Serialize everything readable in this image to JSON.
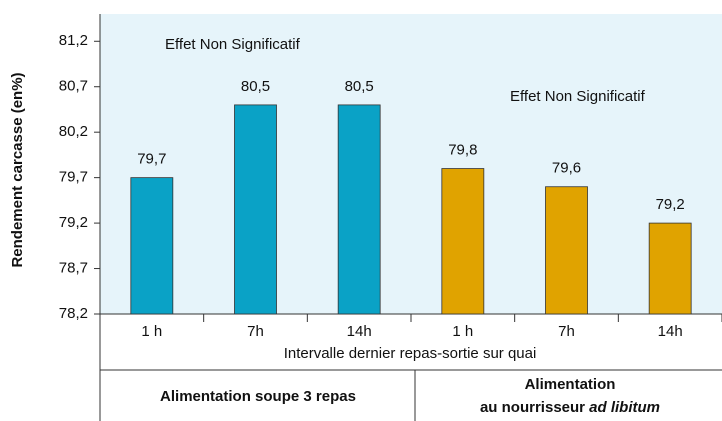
{
  "chart_data": {
    "type": "bar",
    "y_label": "Rendement carcasse (en%)",
    "x_label": "Intervalle dernier repas-sortie sur quai",
    "categories": [
      "1 h",
      "7h",
      "14h",
      "1 h",
      "7h",
      "14h"
    ],
    "values": [
      79.7,
      80.5,
      80.5,
      79.8,
      79.6,
      79.2
    ],
    "value_labels": [
      "79,7",
      "80,5",
      "80,5",
      "79,8",
      "79,6",
      "79,2"
    ],
    "colors": [
      "#0aa2c6",
      "#0aa2c6",
      "#0aa2c6",
      "#e0a300",
      "#e0a300",
      "#e0a300"
    ],
    "ylim": [
      78.2,
      81.5
    ],
    "yticks": [
      {
        "value": 78.2,
        "label": "78,2"
      },
      {
        "value": 78.7,
        "label": "78,7"
      },
      {
        "value": 79.2,
        "label": "79,2"
      },
      {
        "value": 79.7,
        "label": "79,7"
      },
      {
        "value": 80.2,
        "label": "80,2"
      },
      {
        "value": 80.7,
        "label": "80,7"
      },
      {
        "value": 81.2,
        "label": "81,2"
      }
    ],
    "annotations": [
      "Effet Non Significatif",
      "Effet Non Significatif"
    ],
    "groups": [
      {
        "label": "Alimentation soupe 3 repas"
      },
      {
        "line1": "Alimentation",
        "line2": "au nourrisseur ",
        "line2_italic": "ad libitum"
      }
    ]
  }
}
